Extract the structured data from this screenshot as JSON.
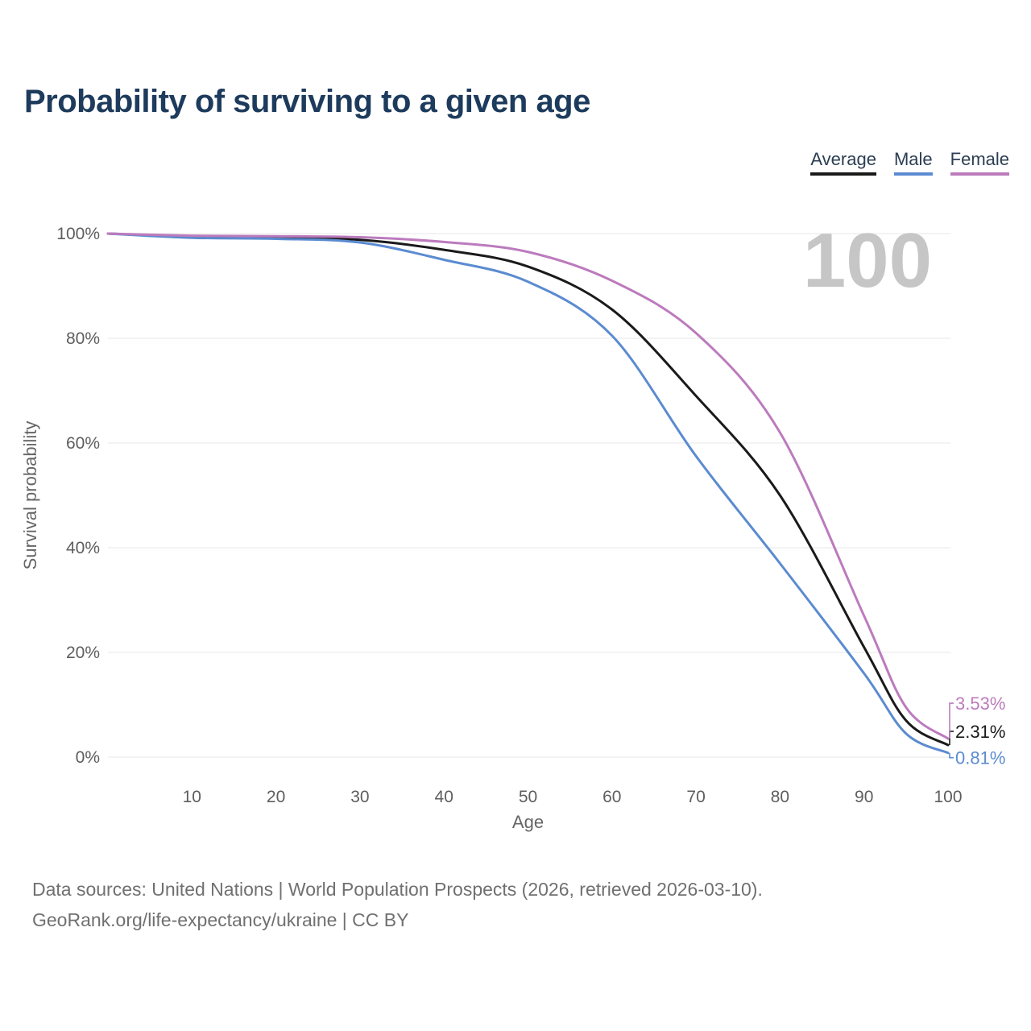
{
  "title": "Probability of surviving to a given age",
  "legend": [
    {
      "label": "Average",
      "color": "#1a1a1a"
    },
    {
      "label": "Male",
      "color": "#5b8bd0"
    },
    {
      "label": "Female",
      "color": "#bc7bbd"
    }
  ],
  "watermark": "100",
  "footer": {
    "line1": "Data sources: United Nations | World Population Prospects (2026, retrieved 2026-03-10).",
    "line2": "GeoRank.org/life-expectancy/ukraine | CC BY"
  },
  "colors": {
    "title": "#1d3b5c",
    "grid": "#ececec",
    "tick_label": "#5e5e5e",
    "axis_title": "#666666",
    "watermark": "#c6c6c6",
    "footer": "#707070"
  },
  "chart_data": {
    "type": "line",
    "title": "Probability of surviving to a given age",
    "xlabel": "Age",
    "ylabel": "Survival probability",
    "xlim": [
      0,
      100
    ],
    "ylim": [
      0,
      100
    ],
    "x_ticks": [
      10,
      20,
      30,
      40,
      50,
      60,
      70,
      80,
      90,
      100
    ],
    "y_ticks": [
      0,
      20,
      40,
      60,
      80,
      100
    ],
    "y_tick_suffix": "%",
    "grid": "horizontal",
    "legend_position": "top-right",
    "x": [
      0,
      10,
      20,
      30,
      40,
      50,
      60,
      70,
      80,
      90,
      95,
      100
    ],
    "series": [
      {
        "name": "Average",
        "color": "#1a1a1a",
        "end_label": "2.31%",
        "values": [
          100,
          99.4,
          99.2,
          98.8,
          96.9,
          93.7,
          85.5,
          69,
          50,
          21,
          7,
          2.31
        ]
      },
      {
        "name": "Male",
        "color": "#5b8bd0",
        "end_label": "0.81%",
        "values": [
          100,
          99.2,
          99.0,
          98.3,
          95.0,
          90.8,
          80.5,
          57.5,
          37,
          16,
          4.5,
          0.81
        ]
      },
      {
        "name": "Female",
        "color": "#bc7bbd",
        "end_label": "3.53%",
        "values": [
          100,
          99.6,
          99.5,
          99.3,
          98.4,
          96.5,
          91,
          81,
          62,
          27,
          9.5,
          3.53
        ]
      }
    ]
  }
}
